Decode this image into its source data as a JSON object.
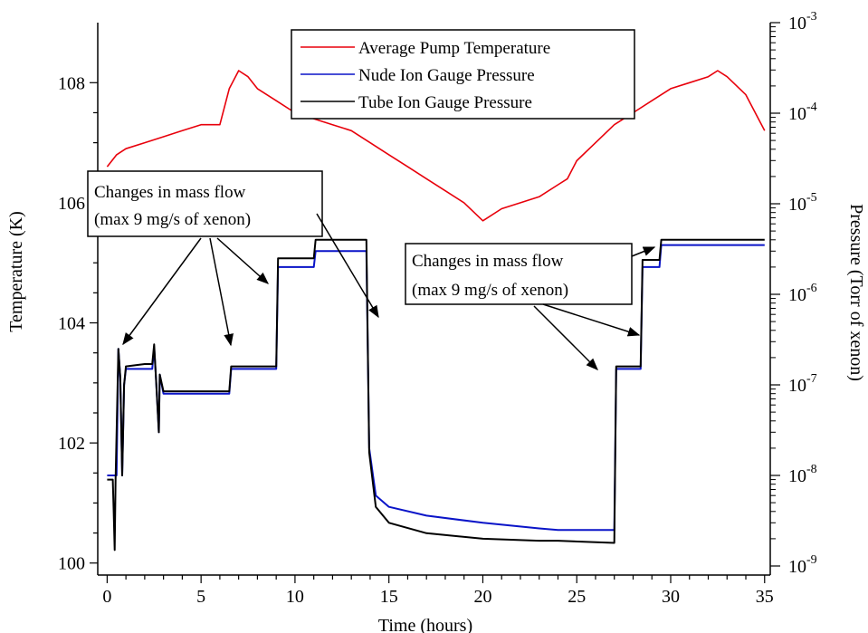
{
  "chart_data": {
    "type": "line",
    "xlabel": "Time (hours)",
    "ylabel_left": "Temperature (K)",
    "ylabel_right": "Pressure (Torr of xenon)",
    "xlim": [
      -0.5,
      35.3
    ],
    "ylim_left": [
      99.8,
      109.0
    ],
    "ylim_right_log10": [
      -9.1,
      -3.0
    ],
    "yscale_right": "log",
    "x_ticks": [
      "0",
      "5",
      "10",
      "15",
      "20",
      "25",
      "30",
      "35"
    ],
    "y_left_ticks": [
      "100",
      "102",
      "104",
      "106",
      "108"
    ],
    "y_right_ticks": [
      {
        "base": "10",
        "exp": "-9"
      },
      {
        "base": "10",
        "exp": "-8"
      },
      {
        "base": "10",
        "exp": "-7"
      },
      {
        "base": "10",
        "exp": "-6"
      },
      {
        "base": "10",
        "exp": "-5"
      },
      {
        "base": "10",
        "exp": "-4"
      },
      {
        "base": "10",
        "exp": "-3"
      }
    ],
    "legend_position": "top-center",
    "series": [
      {
        "name": "Average Pump Temperature",
        "axis": "left",
        "color": "#e8000b",
        "x": [
          0,
          0.5,
          1,
          2,
          3,
          4,
          5,
          6,
          6.5,
          7,
          7.5,
          8,
          9,
          10,
          11,
          12,
          13,
          14,
          15,
          16,
          17,
          18,
          19,
          20,
          21,
          22,
          23,
          24,
          24.5,
          25,
          26,
          27,
          28,
          29,
          30,
          31,
          32,
          32.5,
          33,
          34,
          35
        ],
        "y": [
          106.6,
          106.8,
          106.9,
          107.0,
          107.1,
          107.2,
          107.3,
          107.3,
          107.9,
          108.2,
          108.1,
          107.9,
          107.7,
          107.5,
          107.4,
          107.3,
          107.2,
          107.0,
          106.8,
          106.6,
          106.4,
          106.2,
          106.0,
          105.7,
          105.9,
          106.0,
          106.1,
          106.3,
          106.4,
          106.7,
          107.0,
          107.3,
          107.5,
          107.7,
          107.9,
          108.0,
          108.1,
          108.2,
          108.1,
          107.8,
          107.2
        ]
      },
      {
        "name": "Nude Ion Gauge Pressure",
        "axis": "right",
        "color": "#0a14c8",
        "x": [
          0,
          0.5,
          0.6,
          0.7,
          0.8,
          0.9,
          1,
          2,
          2.4,
          2.5,
          2.6,
          2.75,
          2.8,
          3,
          6.5,
          6.6,
          9,
          9.1,
          11,
          11.1,
          13.8,
          13.95,
          14.3,
          15,
          17,
          20,
          23,
          24,
          27,
          27.1,
          28.4,
          28.5,
          29.4,
          29.5,
          35
        ],
        "y": [
          1e-08,
          1e-08,
          2.5e-07,
          1.2e-07,
          1e-08,
          1e-07,
          1.5e-07,
          1.5e-07,
          1.5e-07,
          2.6e-07,
          1.2e-07,
          3e-08,
          1.3e-07,
          8e-08,
          8e-08,
          1.5e-07,
          1.5e-07,
          2e-06,
          2e-06,
          3e-06,
          3e-06,
          2e-08,
          6e-09,
          4.5e-09,
          3.6e-09,
          3e-09,
          2.6e-09,
          2.5e-09,
          2.5e-09,
          1.5e-07,
          1.5e-07,
          2e-06,
          2e-06,
          3.5e-06,
          3.5e-06
        ]
      },
      {
        "name": "Tube Ion Gauge Pressure",
        "axis": "right",
        "color": "#000000",
        "x": [
          0,
          0.3,
          0.35,
          0.4,
          0.45,
          0.6,
          0.7,
          0.8,
          0.9,
          1,
          2,
          2.4,
          2.5,
          2.6,
          2.75,
          2.8,
          3,
          6.5,
          6.6,
          9,
          9.1,
          11,
          11.1,
          13.8,
          13.95,
          14.3,
          15,
          17,
          20,
          23,
          24,
          27,
          27.1,
          28.4,
          28.5,
          29.4,
          29.5,
          35
        ],
        "y": [
          9e-09,
          9e-09,
          4e-09,
          1.5e-09,
          9e-09,
          2.5e-07,
          1.2e-07,
          1e-08,
          1e-07,
          1.6e-07,
          1.7e-07,
          1.7e-07,
          2.8e-07,
          1.2e-07,
          3e-08,
          1.3e-07,
          8.5e-08,
          8.5e-08,
          1.6e-07,
          1.6e-07,
          2.5e-06,
          2.5e-06,
          4e-06,
          4e-06,
          1.8e-08,
          4.5e-09,
          3e-09,
          2.3e-09,
          2e-09,
          1.9e-09,
          1.9e-09,
          1.8e-09,
          1.6e-07,
          1.6e-07,
          2.4e-06,
          2.4e-06,
          4e-06,
          4e-06
        ]
      }
    ],
    "annotations": [
      {
        "id": "left",
        "lines": [
          "Changes in mass flow",
          "(max 9 mg/s of xenon)"
        ]
      },
      {
        "id": "right",
        "lines": [
          "Changes in mass flow",
          "(max 9 mg/s of xenon)"
        ]
      }
    ]
  }
}
